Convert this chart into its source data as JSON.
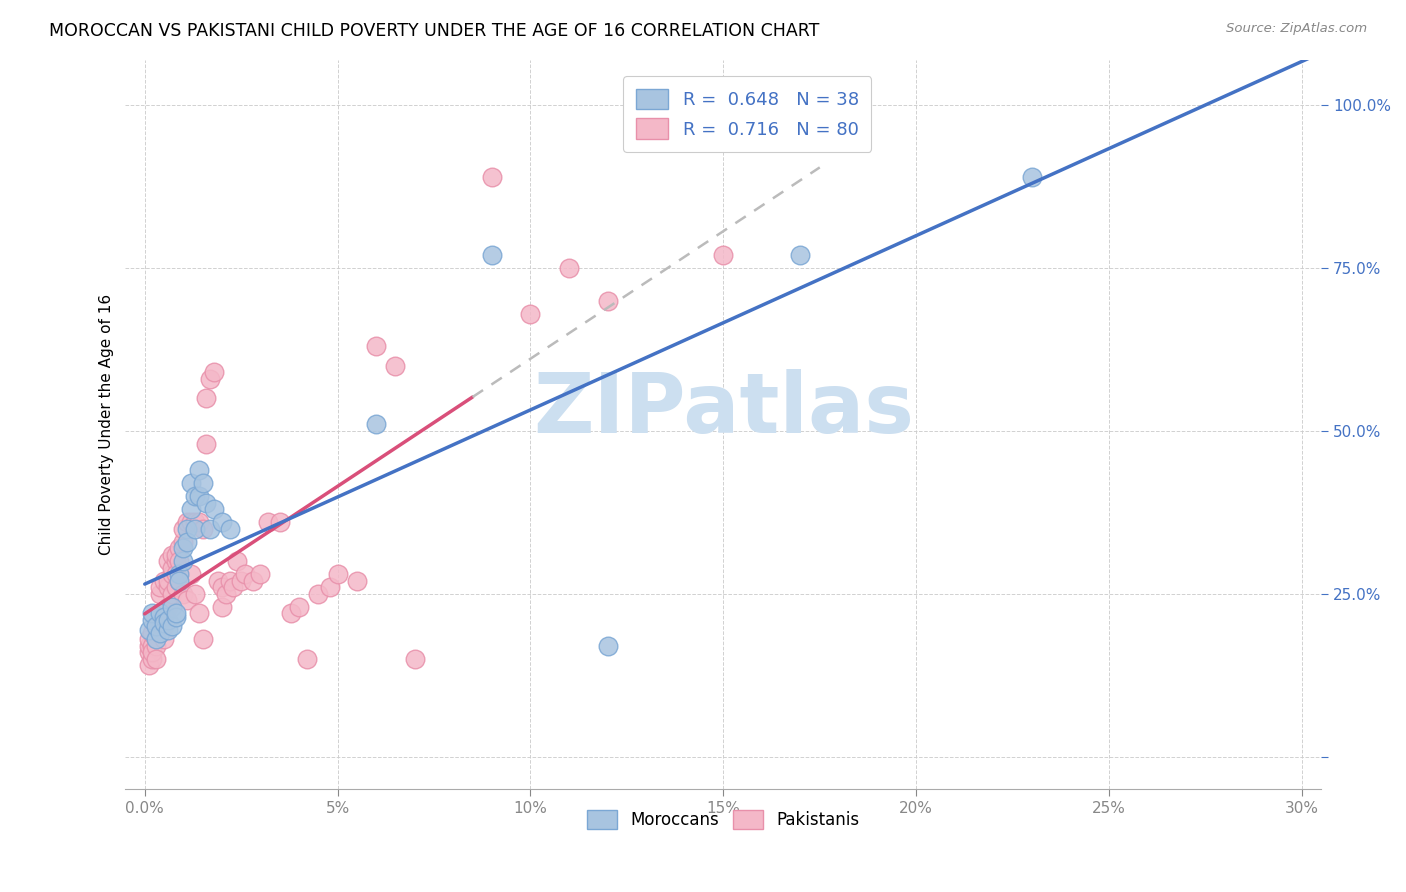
{
  "title": "MOROCCAN VS PAKISTANI CHILD POVERTY UNDER THE AGE OF 16 CORRELATION CHART",
  "source": "Source: ZipAtlas.com",
  "ylabel": "Child Poverty Under the Age of 16",
  "yticks": [
    0.0,
    0.25,
    0.5,
    0.75,
    1.0
  ],
  "ytick_labels": [
    "",
    "25.0%",
    "50.0%",
    "75.0%",
    "100.0%"
  ],
  "xticks": [
    0.0,
    0.05,
    0.1,
    0.15,
    0.2,
    0.25,
    0.3
  ],
  "xlim": [
    -0.005,
    0.305
  ],
  "ylim": [
    -0.05,
    1.07
  ],
  "moroccan_R": 0.648,
  "moroccan_N": 38,
  "pakistani_R": 0.716,
  "pakistani_N": 80,
  "moroccan_color": "#a8c4e0",
  "moroccan_edge": "#7ba7d4",
  "pakistani_color": "#f4b8c8",
  "pakistani_edge": "#e890aa",
  "regression_moroccan_color": "#4472c4",
  "regression_pakistani_color": "#d94f7a",
  "legend_color": "#4472c4",
  "watermark": "ZIPatlas",
  "watermark_color": "#ccdff0",
  "axis_color": "#4472c4",
  "grid_color": "#cccccc",
  "moroccan_scatter": [
    [
      0.001,
      0.195
    ],
    [
      0.002,
      0.21
    ],
    [
      0.002,
      0.22
    ],
    [
      0.003,
      0.18
    ],
    [
      0.003,
      0.2
    ],
    [
      0.004,
      0.19
    ],
    [
      0.004,
      0.22
    ],
    [
      0.005,
      0.215
    ],
    [
      0.005,
      0.205
    ],
    [
      0.006,
      0.195
    ],
    [
      0.006,
      0.21
    ],
    [
      0.007,
      0.2
    ],
    [
      0.007,
      0.23
    ],
    [
      0.008,
      0.215
    ],
    [
      0.008,
      0.22
    ],
    [
      0.009,
      0.28
    ],
    [
      0.009,
      0.27
    ],
    [
      0.01,
      0.3
    ],
    [
      0.01,
      0.32
    ],
    [
      0.011,
      0.35
    ],
    [
      0.011,
      0.33
    ],
    [
      0.012,
      0.38
    ],
    [
      0.012,
      0.42
    ],
    [
      0.013,
      0.4
    ],
    [
      0.013,
      0.35
    ],
    [
      0.014,
      0.4
    ],
    [
      0.014,
      0.44
    ],
    [
      0.015,
      0.42
    ],
    [
      0.016,
      0.39
    ],
    [
      0.017,
      0.35
    ],
    [
      0.018,
      0.38
    ],
    [
      0.02,
      0.36
    ],
    [
      0.022,
      0.35
    ],
    [
      0.06,
      0.51
    ],
    [
      0.09,
      0.77
    ],
    [
      0.12,
      0.17
    ],
    [
      0.17,
      0.77
    ],
    [
      0.23,
      0.89
    ]
  ],
  "pakistani_scatter": [
    [
      0.001,
      0.16
    ],
    [
      0.001,
      0.17
    ],
    [
      0.001,
      0.18
    ],
    [
      0.001,
      0.14
    ],
    [
      0.002,
      0.17
    ],
    [
      0.002,
      0.15
    ],
    [
      0.002,
      0.16
    ],
    [
      0.002,
      0.19
    ],
    [
      0.003,
      0.18
    ],
    [
      0.003,
      0.17
    ],
    [
      0.003,
      0.2
    ],
    [
      0.003,
      0.15
    ],
    [
      0.004,
      0.21
    ],
    [
      0.004,
      0.19
    ],
    [
      0.004,
      0.25
    ],
    [
      0.004,
      0.26
    ],
    [
      0.005,
      0.27
    ],
    [
      0.005,
      0.22
    ],
    [
      0.005,
      0.2
    ],
    [
      0.005,
      0.18
    ],
    [
      0.006,
      0.26
    ],
    [
      0.006,
      0.27
    ],
    [
      0.006,
      0.23
    ],
    [
      0.006,
      0.3
    ],
    [
      0.007,
      0.28
    ],
    [
      0.007,
      0.29
    ],
    [
      0.007,
      0.25
    ],
    [
      0.007,
      0.31
    ],
    [
      0.008,
      0.3
    ],
    [
      0.008,
      0.31
    ],
    [
      0.008,
      0.28
    ],
    [
      0.008,
      0.26
    ],
    [
      0.009,
      0.32
    ],
    [
      0.009,
      0.3
    ],
    [
      0.009,
      0.27
    ],
    [
      0.01,
      0.33
    ],
    [
      0.01,
      0.35
    ],
    [
      0.01,
      0.25
    ],
    [
      0.011,
      0.36
    ],
    [
      0.011,
      0.24
    ],
    [
      0.012,
      0.36
    ],
    [
      0.012,
      0.28
    ],
    [
      0.013,
      0.36
    ],
    [
      0.013,
      0.25
    ],
    [
      0.014,
      0.36
    ],
    [
      0.014,
      0.22
    ],
    [
      0.015,
      0.35
    ],
    [
      0.015,
      0.18
    ],
    [
      0.016,
      0.48
    ],
    [
      0.016,
      0.55
    ],
    [
      0.017,
      0.58
    ],
    [
      0.018,
      0.59
    ],
    [
      0.019,
      0.27
    ],
    [
      0.02,
      0.26
    ],
    [
      0.02,
      0.23
    ],
    [
      0.021,
      0.25
    ],
    [
      0.022,
      0.27
    ],
    [
      0.023,
      0.26
    ],
    [
      0.024,
      0.3
    ],
    [
      0.025,
      0.27
    ],
    [
      0.026,
      0.28
    ],
    [
      0.028,
      0.27
    ],
    [
      0.03,
      0.28
    ],
    [
      0.032,
      0.36
    ],
    [
      0.035,
      0.36
    ],
    [
      0.038,
      0.22
    ],
    [
      0.04,
      0.23
    ],
    [
      0.042,
      0.15
    ],
    [
      0.045,
      0.25
    ],
    [
      0.048,
      0.26
    ],
    [
      0.05,
      0.28
    ],
    [
      0.055,
      0.27
    ],
    [
      0.06,
      0.63
    ],
    [
      0.065,
      0.6
    ],
    [
      0.07,
      0.15
    ],
    [
      0.09,
      0.89
    ],
    [
      0.1,
      0.68
    ],
    [
      0.11,
      0.75
    ],
    [
      0.12,
      0.7
    ],
    [
      0.15,
      0.77
    ]
  ]
}
